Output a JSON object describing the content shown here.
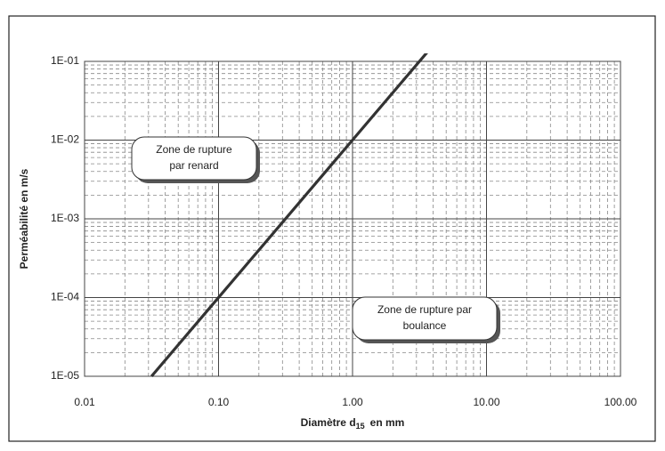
{
  "chart_data": {
    "type": "line",
    "ylabel": "Perméabilité en m/s",
    "xlabel": {
      "text": "Diamètre d",
      "sub": "15",
      "after": "en mm"
    },
    "xscale": "log",
    "yscale": "log",
    "xlim": [
      0.01,
      100
    ],
    "ylim": [
      1e-05,
      0.1
    ],
    "xticks": [
      0.01,
      {
        "value": 0.1,
        "label": "0.10"
      },
      {
        "value": 1,
        "label": "1.00"
      },
      {
        "value": 10,
        "label": "10.00"
      },
      {
        "value": 100,
        "label": "100.00"
      }
    ],
    "yticks": [
      {
        "value": 1e-05,
        "label": "1E-05"
      },
      {
        "value": 0.0001,
        "label": "1E-04"
      },
      {
        "value": 0.001,
        "label": "1E-03"
      },
      {
        "value": 0.01,
        "label": "1E-02"
      },
      {
        "value": 0.1,
        "label": "1E-01"
      }
    ],
    "grid": true,
    "minor_grid": true,
    "x": [
      0.0316,
      3.6
    ],
    "series": [
      {
        "color": "#333333",
        "values": [
          1e-05,
          0.13
        ]
      }
    ],
    "annotations": [
      {
        "lines": [
          "Zone de rupture",
          "par renard"
        ]
      },
      {
        "lines": [
          "Zone de rupture par",
          "boulance"
        ]
      }
    ]
  }
}
